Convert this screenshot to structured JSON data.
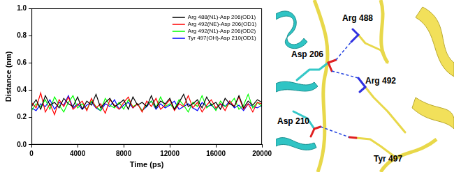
{
  "chart_data": {
    "type": "line",
    "x_label": "Time (ps)",
    "y_label": "Distance (nm)",
    "x": [
      0,
      400,
      800,
      1200,
      1600,
      2000,
      2400,
      2800,
      3200,
      3600,
      4000,
      4400,
      4800,
      5200,
      5600,
      6000,
      6400,
      6800,
      7200,
      7600,
      8000,
      8400,
      8800,
      9200,
      9600,
      10000,
      10400,
      10800,
      11200,
      11600,
      12000,
      12400,
      12800,
      13200,
      13600,
      14000,
      14400,
      14800,
      15200,
      15600,
      16000,
      16400,
      16800,
      17200,
      17600,
      18000,
      18400,
      18800,
      19200,
      19600,
      20000
    ],
    "series": [
      {
        "name": "Arg 488(N1)-Asp 206(OD1)",
        "color": "#000000",
        "values": [
          0.28,
          0.33,
          0.26,
          0.36,
          0.29,
          0.31,
          0.27,
          0.34,
          0.3,
          0.28,
          0.35,
          0.26,
          0.32,
          0.29,
          0.37,
          0.27,
          0.31,
          0.34,
          0.28,
          0.3,
          0.33,
          0.26,
          0.35,
          0.29,
          0.31,
          0.28,
          0.36,
          0.27,
          0.32,
          0.3,
          0.34,
          0.26,
          0.31,
          0.37,
          0.28,
          0.3,
          0.33,
          0.27,
          0.35,
          0.29,
          0.31,
          0.26,
          0.34,
          0.3,
          0.28,
          0.36,
          0.27,
          0.32,
          0.29,
          0.33,
          0.31
        ]
      },
      {
        "name": "Arg 492(NE)-Asp 206(OD1)",
        "color": "#ff0000",
        "values": [
          0.31,
          0.27,
          0.38,
          0.24,
          0.3,
          0.22,
          0.33,
          0.28,
          0.35,
          0.26,
          0.29,
          0.32,
          0.25,
          0.34,
          0.27,
          0.3,
          0.23,
          0.33,
          0.29,
          0.26,
          0.31,
          0.35,
          0.27,
          0.3,
          0.24,
          0.32,
          0.28,
          0.34,
          0.26,
          0.29,
          0.33,
          0.25,
          0.3,
          0.28,
          0.36,
          0.27,
          0.31,
          0.24,
          0.29,
          0.33,
          0.27,
          0.3,
          0.25,
          0.32,
          0.28,
          0.35,
          0.26,
          0.3,
          0.24,
          0.31,
          0.3
        ]
      },
      {
        "name": "Arg 492(N1)-Asp 206(OD2)",
        "color": "#00ff00",
        "values": [
          0.25,
          0.3,
          0.28,
          0.33,
          0.26,
          0.35,
          0.29,
          0.24,
          0.31,
          0.36,
          0.27,
          0.3,
          0.26,
          0.32,
          0.28,
          0.25,
          0.34,
          0.29,
          0.27,
          0.31,
          0.26,
          0.33,
          0.28,
          0.3,
          0.25,
          0.29,
          0.32,
          0.27,
          0.35,
          0.28,
          0.3,
          0.26,
          0.33,
          0.29,
          0.24,
          0.31,
          0.28,
          0.36,
          0.27,
          0.3,
          0.25,
          0.32,
          0.28,
          0.3,
          0.34,
          0.26,
          0.29,
          0.37,
          0.27,
          0.31,
          0.28
        ]
      },
      {
        "name": "Tyr 497(OH)-Asp 210(OD1)",
        "color": "#0000ff",
        "values": [
          0.27,
          0.25,
          0.3,
          0.28,
          0.33,
          0.26,
          0.31,
          0.29,
          0.36,
          0.27,
          0.3,
          0.26,
          0.29,
          0.31,
          0.27,
          0.25,
          0.3,
          0.28,
          0.33,
          0.26,
          0.29,
          0.31,
          0.27,
          0.3,
          0.25,
          0.28,
          0.32,
          0.26,
          0.3,
          0.27,
          0.29,
          0.32,
          0.26,
          0.28,
          0.3,
          0.27,
          0.25,
          0.31,
          0.28,
          0.29,
          0.26,
          0.3,
          0.28,
          0.32,
          0.27,
          0.29,
          0.25,
          0.3,
          0.28,
          0.27,
          0.29
        ]
      }
    ],
    "xlim": [
      0,
      20000
    ],
    "xticks": [
      0,
      4000,
      8000,
      12000,
      16000,
      20000
    ],
    "ylim": [
      0,
      1
    ],
    "yticks": [
      {
        "value": 0,
        "label": "0.0"
      },
      0.2,
      0.4,
      0.6,
      0.8,
      {
        "value": 1,
        "label": "1.0"
      }
    ],
    "grid": false,
    "legend": "upper right"
  },
  "structure": {
    "residues": [
      "Asp 206",
      "Arg 488",
      "Arg 492",
      "Asp 210",
      "Tyr 497"
    ]
  }
}
